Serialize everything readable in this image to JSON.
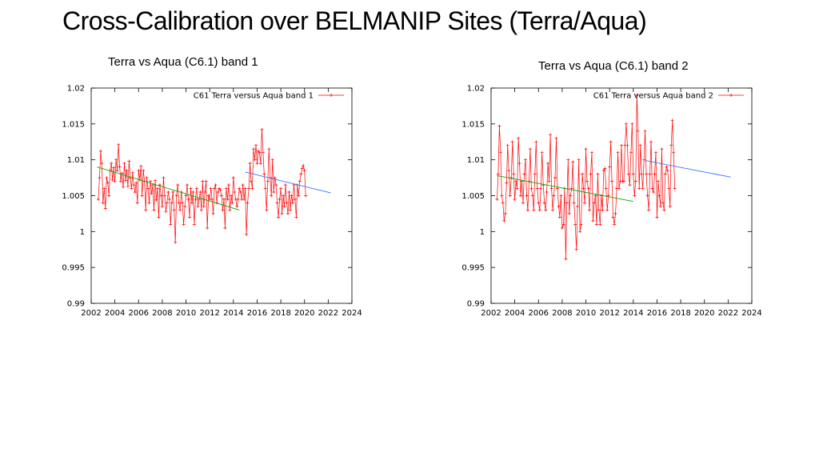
{
  "slide": {
    "title": "Cross-Calibration over BELMANIP Sites  (Terra/Aqua)",
    "captions": [
      "Terra vs Aqua (C6.1) band 1",
      "Terra vs Aqua (C6.1) band 2"
    ]
  },
  "colors": {
    "series": "#ff0000",
    "trend_early": "#00aa00",
    "trend_late": "#3377ff",
    "frame": "#000000"
  },
  "chart_data": [
    {
      "type": "line",
      "title": "",
      "xlabel": "",
      "ylabel": "",
      "xlim": [
        2002,
        2024
      ],
      "ylim": [
        0.99,
        1.02
      ],
      "x_ticks": [
        "2002",
        "2004",
        "2006",
        "2008",
        "2010",
        "2012",
        "2014",
        "2016",
        "2018",
        "2020",
        "2022",
        "2024"
      ],
      "y_ticks": [
        "0.99",
        "0.995",
        "1",
        "1.005",
        "1.01",
        "1.015",
        "1.02"
      ],
      "grid": false,
      "legend_position": "top-right",
      "series": [
        {
          "name": "C61 Terra versus Aqua band 1",
          "start_year": 2002.6,
          "step": 0.1,
          "values": [
            1.0045,
            1.0075,
            1.0112,
            1.0095,
            1.004,
            1.006,
            1.0032,
            1.0075,
            1.0068,
            1.005,
            1.0085,
            1.0095,
            1.0072,
            1.0089,
            1.007,
            1.01,
            1.0085,
            1.0121,
            1.009,
            1.007,
            1.0081,
            1.0062,
            1.0095,
            1.0071,
            1.0085,
            1.0063,
            1.0098,
            1.0075,
            1.006,
            1.0082,
            1.0065,
            1.0055,
            1.0068,
            1.004,
            1.0085,
            1.0072,
            1.0091,
            1.005,
            1.0085,
            1.007,
            1.003,
            1.0075,
            1.006,
            1.004,
            1.007,
            1.0053,
            1.0065,
            1.003,
            1.0071,
            1.0044,
            1.006,
            1.002,
            1.0065,
            1.005,
            1.0035,
            1.0075,
            1.005,
            1.0028,
            1.004,
            1.0055,
            1.0045,
            1.001,
            1.004,
            1.0055,
            1.003,
            0.9985,
            1.005,
            1.0065,
            1.004,
            1.003,
            1.0055,
            1.004,
            1.001,
            1.0035,
            1.005,
            1.0065,
            1.0045,
            1.002,
            1.006,
            1.004,
            1.0055,
            1.001,
            1.0045,
            1.006,
            1.0035,
            1.0045,
            1.0055,
            1.003,
            1.007,
            1.0035,
            1.0055,
            1.007,
            1.0005,
            1.005,
            1.0045,
            1.006,
            1.0045,
            1.0025,
            1.006,
            1.0065,
            1.004,
            1.0055,
            1.006,
            1.0058,
            1.005,
            1.003,
            1.0045,
            1.0005,
            1.006,
            1.0045,
            1.0065,
            1.003,
            1.005,
            1.004,
            1.0075,
            1.0055,
            1.0045,
            1.0035,
            1.0045,
            1.006,
            1.0055,
            1.0045,
            1.0065,
            1.0045,
            1.006,
            0.9996,
            1.004,
            1.006,
            1.0095,
            1.007,
            1.006,
            1.0115,
            1.01,
            1.012,
            1.0095,
            1.0112,
            1.011,
            1.0095,
            1.0142,
            1.011,
            1.008,
            1.006,
            1.003,
            1.007,
            1.0115,
            1.0075,
            1.005,
            1.01,
            1.0055,
            1.0075,
            1.0065,
            1.004,
            1.002,
            1.0045,
            1.006,
            1.0025,
            1.005,
            1.0035,
            1.0065,
            1.004,
            1.0025,
            1.0055,
            1.003,
            1.005,
            1.004,
            1.0065,
            1.0045,
            1.002,
            1.0065,
            1.005,
            1.007,
            1.008,
            1.0088,
            1.0092,
            1.0085,
            1.005
          ]
        }
      ],
      "trends": [
        {
          "x": [
            2002.5,
            2014.5
          ],
          "y": [
            1.009,
            1.003
          ]
        },
        {
          "x": [
            2015.0,
            2022.2
          ],
          "y": [
            1.0083,
            1.0054
          ]
        }
      ]
    },
    {
      "type": "line",
      "title": "",
      "xlabel": "",
      "ylabel": "",
      "xlim": [
        2002,
        2024
      ],
      "ylim": [
        0.99,
        1.02
      ],
      "x_ticks": [
        "2002",
        "2004",
        "2006",
        "2008",
        "2010",
        "2012",
        "2014",
        "2016",
        "2018",
        "2020",
        "2022",
        "2024"
      ],
      "y_ticks": [
        "0.99",
        "0.995",
        "1",
        "1.005",
        "1.01",
        "1.015",
        "1.02"
      ],
      "grid": false,
      "legend_position": "top-right",
      "series": [
        {
          "name": "C61 Terra versus Aqua band 2",
          "start_year": 2002.5,
          "step": 0.1,
          "values": [
            1.0045,
            1.008,
            1.0147,
            1.011,
            1.005,
            1.004,
            1.0015,
            1.0025,
            1.0068,
            1.012,
            1.0085,
            1.005,
            1.0075,
            1.0125,
            1.008,
            1.0045,
            1.007,
            1.006,
            1.013,
            1.0095,
            1.005,
            1.007,
            1.004,
            1.008,
            1.01,
            1.005,
            1.003,
            1.007,
            1.0115,
            1.006,
            1.005,
            1.003,
            1.008,
            1.0125,
            1.006,
            1.004,
            1.003,
            1.006,
            1.011,
            1.0065,
            1.004,
            1.003,
            1.0055,
            1.0095,
            1.007,
            1.0135,
            1.006,
            1.003,
            1.005,
            1.0075,
            1.013,
            1.006,
            1.0035,
            1.002,
            1.005,
            1.0005,
            1.001,
            1.006,
            0.9962,
            1.004,
            1.01,
            1.0025,
            1.005,
            1.006,
            1.0097,
            1.004,
            1.001,
            0.9975,
            1.0035,
            1.01,
            1.0,
            1.001,
            1.008,
            1.006,
            1.004,
            1.0115,
            1.007,
            1.006,
            1.003,
            1.008,
            1.011,
            1.0015,
            1.004,
            1.005,
            1.001,
            1.008,
            1.003,
            1.001,
            1.005,
            1.003,
            1.0085,
            1.0088,
            1.006,
            1.003,
            1.005,
            1.009,
            1.0125,
            1.007,
            1.002,
            1.001,
            1.0025,
            1.006,
            1.011,
            1.006,
            1.007,
            1.012,
            1.007,
            1.007,
            1.012,
            1.015,
            1.012,
            1.008,
            1.0065,
            1.011,
            1.015,
            1.008,
            1.005,
            1.007,
            1.019,
            1.014,
            1.006,
            1.012,
            1.008,
            1.006,
            1.01,
            1.014,
            1.008,
            1.005,
            1.003,
            1.008,
            1.0125,
            1.006,
            1.0055,
            1.008,
            1.011,
            1.002,
            1.007,
            1.005,
            1.0035,
            1.0115,
            1.004,
            1.003,
            1.008,
            1.009,
            1.0085,
            1.006,
            1.0035,
            1.012,
            1.0155,
            1.011,
            1.006
          ]
        }
      ],
      "trends": [
        {
          "x": [
            2002.5,
            2014.0
          ],
          "y": [
            1.0078,
            1.0042
          ]
        },
        {
          "x": [
            2015.0,
            2022.2
          ],
          "y": [
            1.0099,
            1.0076
          ]
        }
      ]
    }
  ]
}
